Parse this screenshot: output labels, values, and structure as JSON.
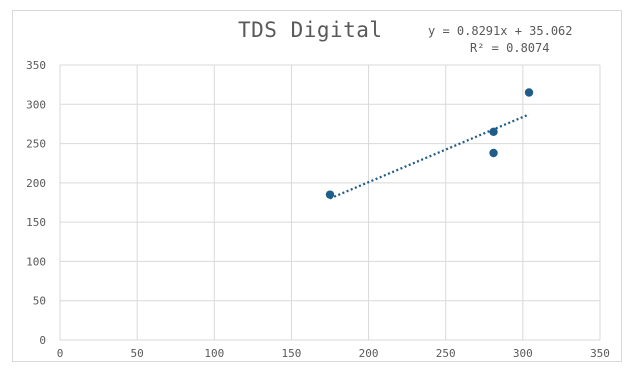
{
  "chart_data": {
    "type": "scatter",
    "title": "TDS Digital",
    "xlabel": "",
    "ylabel": "",
    "xlim": [
      0,
      350
    ],
    "ylim": [
      0,
      350
    ],
    "x_ticks": [
      0,
      50,
      100,
      150,
      200,
      250,
      300,
      350
    ],
    "y_ticks": [
      0,
      50,
      100,
      150,
      200,
      250,
      300,
      350
    ],
    "grid": true,
    "legend": "none",
    "series": [
      {
        "color": "#1f5c8a",
        "points": [
          {
            "x": 175,
            "y": 185
          },
          {
            "x": 281,
            "y": 265
          },
          {
            "x": 281,
            "y": 238
          },
          {
            "x": 304,
            "y": 315
          }
        ]
      }
    ],
    "trendline": {
      "type": "linear",
      "style": "dotted",
      "color": "#1f5c8a",
      "slope": 0.8291,
      "intercept": 35.062,
      "x_range": [
        175,
        304
      ],
      "equation_label": "y = 0.8291x + 35.062",
      "r2_label": "R² = 0.8074"
    },
    "gridline_color": "#d9d9d9",
    "axis_text_color": "#595959"
  }
}
